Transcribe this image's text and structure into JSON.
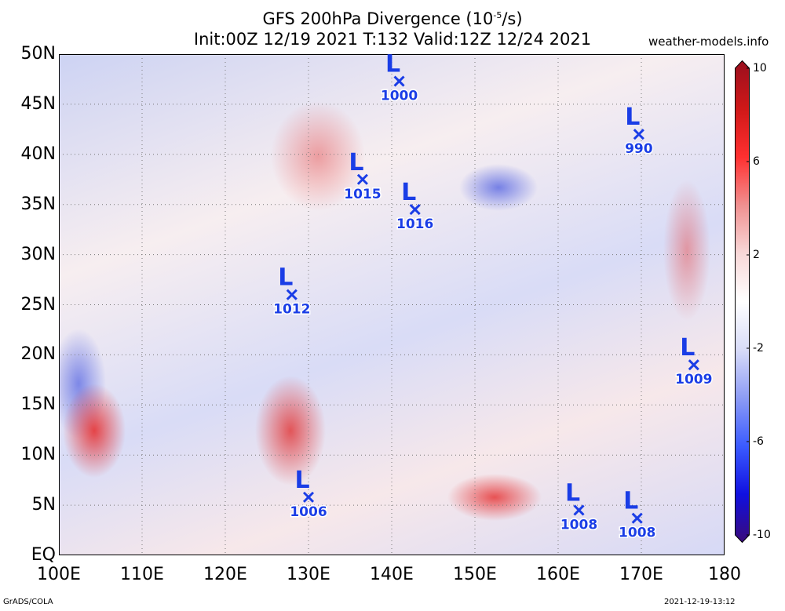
{
  "header": {
    "title_line1": "GFS 200hPa Divergence (10",
    "title_sup": "-5",
    "title_line1_end": "/s)",
    "title_line2": "Init:00Z 12/19 2021 T:132 Valid:12Z 12/24 2021",
    "credit": "weather-models.info"
  },
  "footer": {
    "left": "GrADS/COLA",
    "right": "2021-12-19-13:12"
  },
  "map": {
    "lon_range": [
      100,
      180
    ],
    "lat_range": [
      0,
      50
    ],
    "lat_labels": [
      {
        "lat": 50,
        "text": "50N"
      },
      {
        "lat": 45,
        "text": "45N"
      },
      {
        "lat": 40,
        "text": "40N"
      },
      {
        "lat": 35,
        "text": "35N"
      },
      {
        "lat": 30,
        "text": "30N"
      },
      {
        "lat": 25,
        "text": "25N"
      },
      {
        "lat": 20,
        "text": "20N"
      },
      {
        "lat": 15,
        "text": "15N"
      },
      {
        "lat": 10,
        "text": "10N"
      },
      {
        "lat": 5,
        "text": "5N"
      },
      {
        "lat": 0,
        "text": "EQ"
      }
    ],
    "lon_labels": [
      {
        "lon": 100,
        "text": "100E"
      },
      {
        "lon": 110,
        "text": "110E"
      },
      {
        "lon": 120,
        "text": "120E"
      },
      {
        "lon": 130,
        "text": "130E"
      },
      {
        "lon": 140,
        "text": "140E"
      },
      {
        "lon": 150,
        "text": "150E"
      },
      {
        "lon": 160,
        "text": "160E"
      },
      {
        "lon": 170,
        "text": "170E"
      },
      {
        "lon": 180,
        "text": "180"
      }
    ],
    "low_letter": "L",
    "low_color": "#1a3de6",
    "lows": [
      {
        "lon": 140.9,
        "lat": 47.3,
        "pressure": "1000"
      },
      {
        "lon": 136.5,
        "lat": 37.5,
        "pressure": "1015"
      },
      {
        "lon": 142.8,
        "lat": 34.5,
        "pressure": "1016"
      },
      {
        "lon": 169.7,
        "lat": 42.0,
        "pressure": "990"
      },
      {
        "lon": 128.0,
        "lat": 26.0,
        "pressure": "1012"
      },
      {
        "lon": 176.3,
        "lat": 19.0,
        "pressure": "1009"
      },
      {
        "lon": 130.0,
        "lat": 5.8,
        "pressure": "1006"
      },
      {
        "lon": 162.5,
        "lat": 4.5,
        "pressure": "1008"
      },
      {
        "lon": 169.5,
        "lat": 3.7,
        "pressure": "1008"
      }
    ]
  },
  "colorbar": {
    "range": [
      -10,
      10
    ],
    "labels": [
      {
        "value": 10,
        "text": "10"
      },
      {
        "value": 6,
        "text": "6"
      },
      {
        "value": 2,
        "text": "2"
      },
      {
        "value": -2,
        "text": "-2"
      },
      {
        "value": -6,
        "text": "-6"
      },
      {
        "value": -10,
        "text": "-10"
      }
    ],
    "colors": [
      "#3a0a7a",
      "#1010e0",
      "#3b5bff",
      "#8d9cf5",
      "#d8dcf8",
      "#ffffff",
      "#f8d8d8",
      "#f09090",
      "#ff3030",
      "#d01818",
      "#9a0f1e"
    ]
  }
}
